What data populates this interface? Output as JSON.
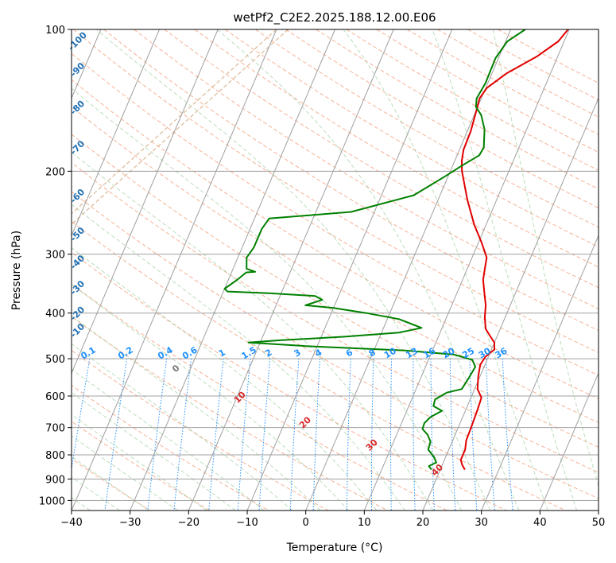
{
  "chart_data": {
    "type": "line",
    "title": "wetPf2_C2E2.2025.188.12.00.E06",
    "xlabel": "Temperature (°C)",
    "ylabel": "Pressure (hPa)",
    "xlim": [
      -40,
      50
    ],
    "ylim": [
      1050,
      100
    ],
    "y_scale": "log",
    "grid": true,
    "x_ticks": [
      -40,
      -30,
      -20,
      -10,
      0,
      10,
      20,
      30,
      40,
      50
    ],
    "y_ticks": [
      100,
      200,
      300,
      400,
      500,
      600,
      700,
      800,
      900,
      1000
    ],
    "series": [
      {
        "color": "#e00000",
        "points": [
          [
            9.8,
            100
          ],
          [
            9.0,
            106
          ],
          [
            6.5,
            114
          ],
          [
            2.5,
            124
          ],
          [
            0.2,
            133
          ],
          [
            -0.3,
            140
          ],
          [
            0.1,
            150
          ],
          [
            0.6,
            165
          ],
          [
            0.7,
            180
          ],
          [
            1.2,
            190
          ],
          [
            2.0,
            200
          ],
          [
            5.0,
            230
          ],
          [
            8.0,
            260
          ],
          [
            10.5,
            283
          ],
          [
            12.5,
            305
          ],
          [
            13.0,
            322
          ],
          [
            13.5,
            340
          ],
          [
            14.8,
            365
          ],
          [
            15.8,
            385
          ],
          [
            16.5,
            408
          ],
          [
            17.5,
            432
          ],
          [
            19.0,
            450
          ],
          [
            20.0,
            462
          ],
          [
            20.5,
            478
          ],
          [
            19.5,
            495
          ],
          [
            19.2,
            515
          ],
          [
            19.7,
            545
          ],
          [
            20.5,
            580
          ],
          [
            21.8,
            605
          ],
          [
            22.0,
            640
          ],
          [
            22.2,
            700
          ],
          [
            22.3,
            745
          ],
          [
            22.8,
            780
          ],
          [
            22.8,
            820
          ],
          [
            23.4,
            840
          ],
          [
            24.2,
            860
          ]
        ]
      },
      {
        "color": "#008000",
        "points": [
          [
            2.5,
            100
          ],
          [
            0.3,
            106
          ],
          [
            -0.5,
            115
          ],
          [
            -0.4,
            130
          ],
          [
            -0.8,
            140
          ],
          [
            -0.3,
            146
          ],
          [
            1.2,
            152
          ],
          [
            2.8,
            163
          ],
          [
            4.0,
            178
          ],
          [
            3.8,
            185
          ],
          [
            1.5,
            195
          ],
          [
            -0.5,
            205
          ],
          [
            -4.5,
            225
          ],
          [
            -14.0,
            244
          ],
          [
            -27.5,
            252
          ],
          [
            -28.0,
            265
          ],
          [
            -28.0,
            290
          ],
          [
            -28.5,
            305
          ],
          [
            -27.7,
            322
          ],
          [
            -26.0,
            327
          ],
          [
            -27.5,
            328
          ],
          [
            -28.5,
            340
          ],
          [
            -30.0,
            355
          ],
          [
            -29.3,
            360
          ],
          [
            -22.0,
            363
          ],
          [
            -14.0,
            368
          ],
          [
            -12.5,
            375
          ],
          [
            -15.0,
            385
          ],
          [
            -10.0,
            390
          ],
          [
            -4.0,
            400
          ],
          [
            2.0,
            412
          ],
          [
            6.5,
            430
          ],
          [
            3.0,
            440
          ],
          [
            -6.0,
            449
          ],
          [
            -17.0,
            457
          ],
          [
            -22.0,
            462
          ],
          [
            -12.0,
            470
          ],
          [
            5.0,
            480
          ],
          [
            14.0,
            490
          ],
          [
            17.5,
            503
          ],
          [
            18.5,
            520
          ],
          [
            18.2,
            550
          ],
          [
            17.8,
            580
          ],
          [
            15.5,
            590
          ],
          [
            14.0,
            610
          ],
          [
            14.2,
            630
          ],
          [
            16.0,
            645
          ],
          [
            14.5,
            665
          ],
          [
            13.9,
            685
          ],
          [
            14.0,
            705
          ],
          [
            15.3,
            725
          ],
          [
            16.3,
            750
          ],
          [
            16.5,
            780
          ],
          [
            18.0,
            808
          ],
          [
            18.8,
            830
          ],
          [
            17.8,
            845
          ],
          [
            18.5,
            860
          ]
        ]
      }
    ],
    "annotations": {
      "dry_adiabat_labels": [
        "-100",
        "-90",
        "-80",
        "-70",
        "-60",
        "-50",
        "-40",
        "-30",
        "-20",
        "-10"
      ],
      "mixing_ratio_labels": [
        "0.1",
        "0.2",
        "0.4",
        "0.6",
        "1",
        "1.5",
        "2",
        "3",
        "4",
        "6",
        "8",
        "10",
        "13",
        "16",
        "20",
        "25",
        "30",
        "36"
      ],
      "moist_adiabat_labels": [
        "0",
        "10",
        "20",
        "30",
        "40"
      ]
    }
  }
}
